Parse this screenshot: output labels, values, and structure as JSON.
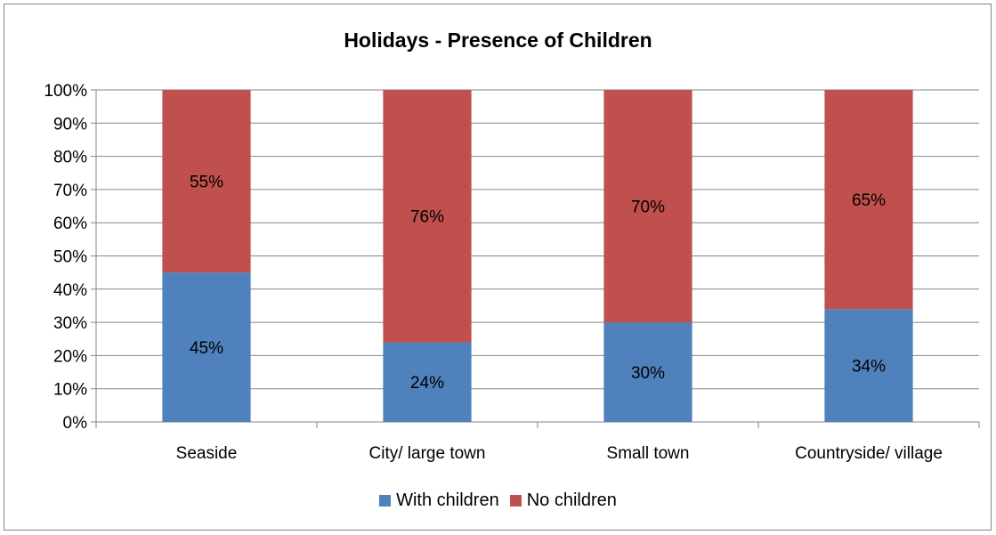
{
  "chart_data": {
    "type": "bar",
    "stacked": true,
    "percent_stacked": true,
    "title": "Holidays - Presence of Children",
    "xlabel": "",
    "ylabel": "",
    "categories": [
      "Seaside",
      "City/ large town",
      "Small town",
      "Countryside/ village"
    ],
    "series": [
      {
        "name": "With children",
        "color": "#4F81BD",
        "values": [
          45,
          24,
          30,
          34
        ],
        "labels": [
          "45%",
          "24%",
          "30%",
          "34%"
        ]
      },
      {
        "name": "No children",
        "color": "#C0504D",
        "values": [
          55,
          76,
          70,
          65
        ],
        "labels": [
          "55%",
          "76%",
          "70%",
          "65%"
        ]
      }
    ],
    "ylim": [
      0,
      100
    ],
    "yticks": [
      "0%",
      "10%",
      "20%",
      "30%",
      "40%",
      "50%",
      "60%",
      "70%",
      "80%",
      "90%",
      "100%"
    ],
    "grid": true,
    "legend_position": "bottom"
  }
}
